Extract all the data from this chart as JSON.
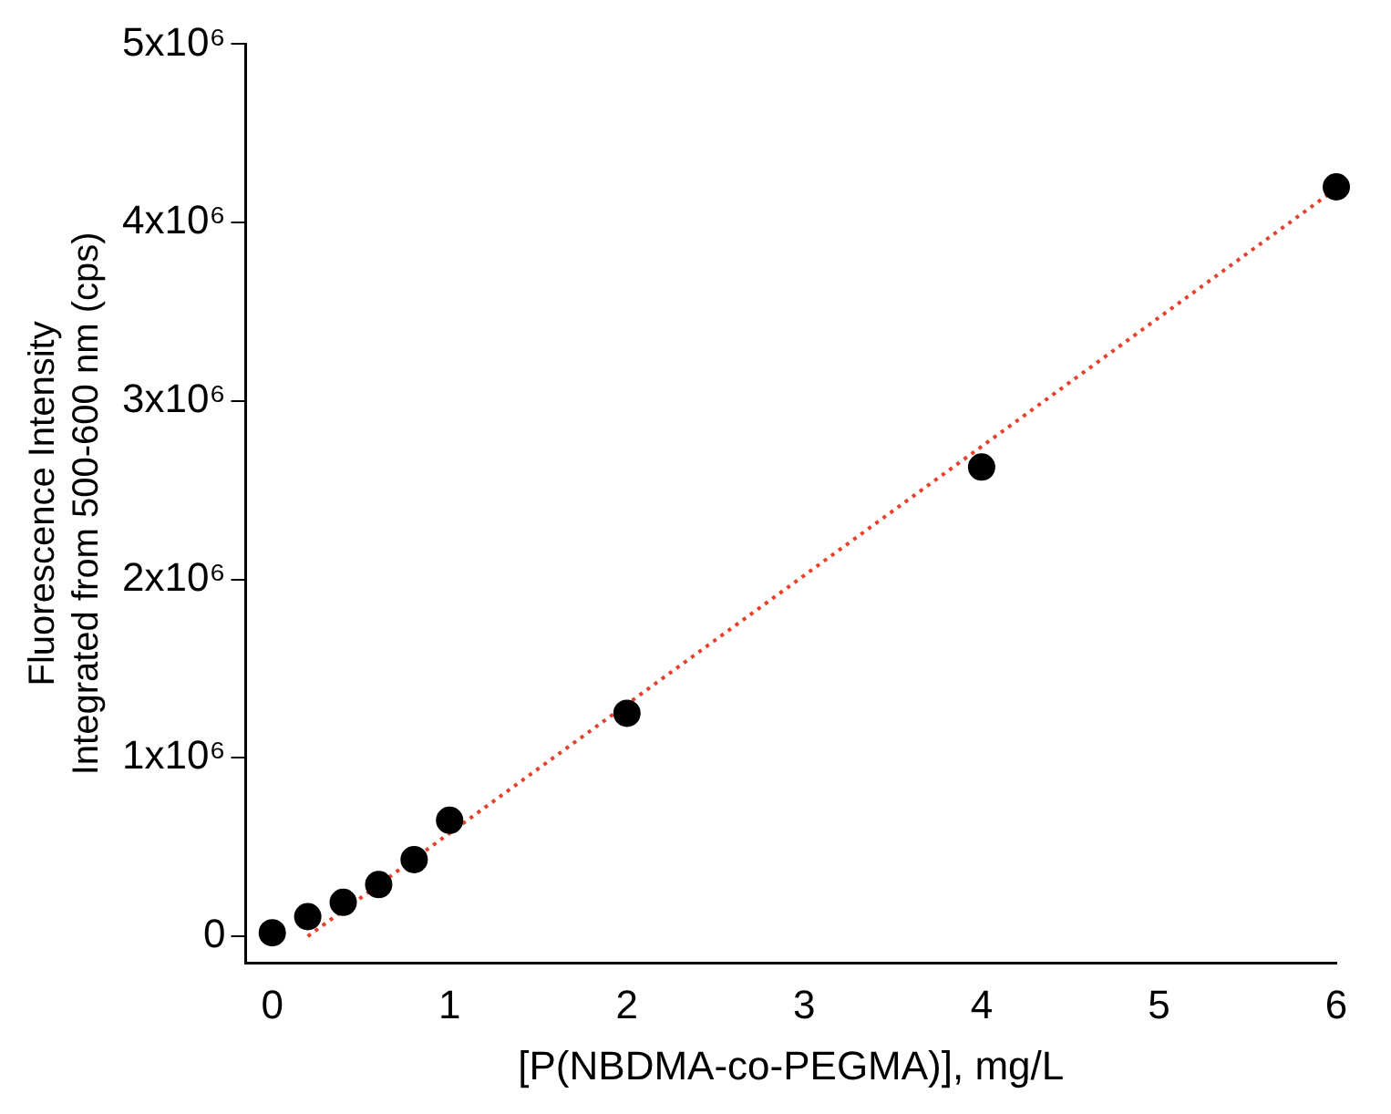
{
  "chart_data": {
    "type": "scatter",
    "xlabel": "[P(NBDMA-co-PEGMA)], mg/L",
    "ylabel": "Fluorescence Intensity\nIntegrated from 500-600 nm (cps)",
    "x": [
      0,
      0.2,
      0.4,
      0.6,
      0.8,
      1,
      2,
      4,
      6
    ],
    "series": [
      {
        "color": "#000000",
        "marker": "circle",
        "values": [
          20000,
          110000,
          190000,
          290000,
          430000,
          650000,
          1250000,
          2630000,
          4200000
        ]
      },
      {
        "type": "line",
        "color": "#e8402a",
        "line_style": "dotted",
        "marker": "none",
        "x": [
          0.2,
          6
        ],
        "values": [
          0,
          4190000
        ]
      }
    ],
    "xlim": [
      -0.15,
      6
    ],
    "xticks": [
      0,
      1,
      2,
      3,
      4,
      5,
      6
    ],
    "ylim": [
      -150000,
      5000000
    ],
    "yticks": [
      0,
      {
        "value": 1000000,
        "label": "1x10⁶"
      },
      {
        "value": 2000000,
        "label": "2x10⁶"
      },
      {
        "value": 3000000,
        "label": "3x10⁶"
      },
      {
        "value": 4000000,
        "label": "4x10⁶"
      },
      {
        "value": 5000000,
        "label": "5x10⁶"
      }
    ],
    "grid": false,
    "legend": false
  }
}
